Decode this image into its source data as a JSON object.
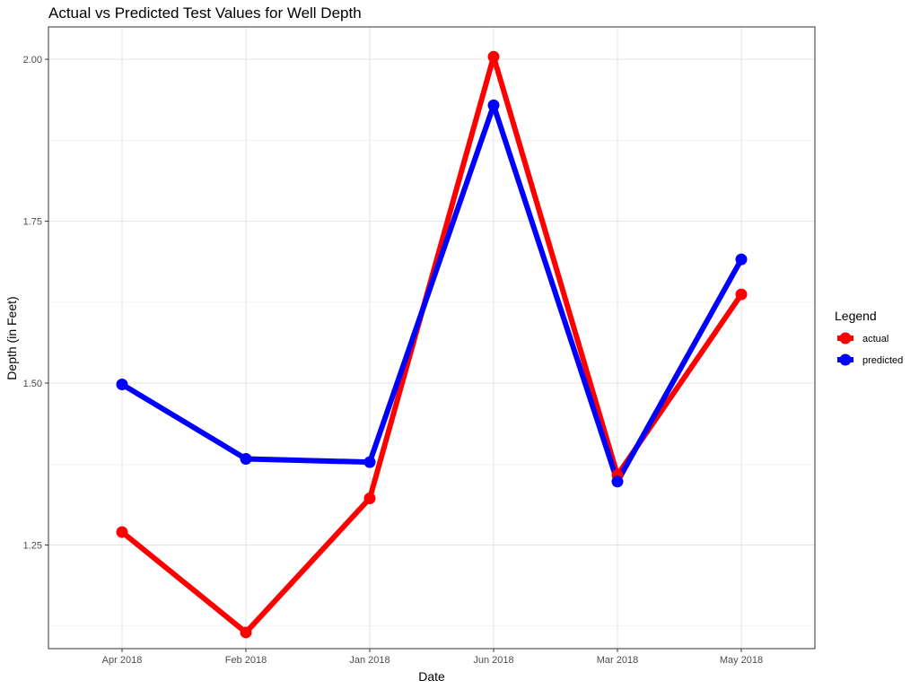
{
  "chart_data": {
    "type": "line",
    "title": "Actual vs Predicted Test Values for Well Depth",
    "xlabel": "Date",
    "ylabel": "Depth (in Feet)",
    "categories": [
      "Apr 2018",
      "Feb 2018",
      "Jan 2018",
      "Jun 2018",
      "Mar 2018",
      "May 2018"
    ],
    "series": [
      {
        "name": "actual",
        "color": "#ff0000",
        "values": [
          1.27,
          1.115,
          1.322,
          2.004,
          1.358,
          1.637
        ]
      },
      {
        "name": "predicted",
        "color": "#0000ff",
        "values": [
          1.498,
          1.383,
          1.378,
          1.929,
          1.348,
          1.691
        ]
      }
    ],
    "ylim": [
      1.09,
      2.05
    ],
    "yticks": [
      1.25,
      1.5,
      1.75,
      2.0
    ],
    "ytick_labels": [
      "1.25",
      "1.50",
      "1.75",
      "2.00"
    ],
    "grid": true,
    "legend": {
      "title": "Legend",
      "position": "right"
    }
  }
}
